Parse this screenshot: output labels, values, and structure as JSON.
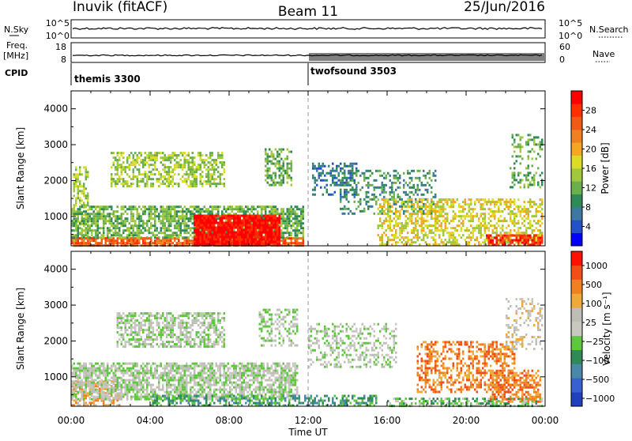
{
  "header": {
    "station": "Inuvik (fitACF)",
    "beam": "Beam 11",
    "date": "25/Jun/2016"
  },
  "top_panels": {
    "nsky_label": "N.Sky",
    "nsearch_label": "N.Search",
    "nsky_ticks": [
      "10^5",
      "10^0"
    ],
    "nsearch_ticks": [
      "10^5",
      "10^0"
    ],
    "freq_label_1": "Freq.",
    "freq_label_2": "[MHz]",
    "freq_ticks": [
      "18",
      "8"
    ],
    "nave_label": "Nave",
    "nave_ticks": [
      "60",
      "0"
    ],
    "cpid_label": "CPID",
    "cpid_segments": [
      {
        "name": "themis 3300",
        "start_hour": 0,
        "end_hour": 12
      },
      {
        "name": "twofsound 3503",
        "start_hour": 12,
        "end_hour": 24
      }
    ]
  },
  "chart_data": [
    {
      "type": "heatmap",
      "panel": "power",
      "ylabel": "Slant Range [km]",
      "ylim": [
        180,
        4500
      ],
      "xlim_hours": [
        0,
        24
      ],
      "y_ticks": [
        1000,
        2000,
        3000,
        4000
      ],
      "colorbar": {
        "label": "Power [dB]",
        "ticks": [
          "4",
          "8",
          "12",
          "16",
          "20",
          "24",
          "28"
        ],
        "colors": [
          "#0000ff",
          "#2450c8",
          "#3c78a0",
          "#2e8b57",
          "#6ab04c",
          "#a0c83c",
          "#dcdc28",
          "#f5a623",
          "#f08020",
          "#f05a14",
          "#ff3000",
          "#ff0000"
        ]
      },
      "regions": [
        {
          "h0": 0.1,
          "h1": 0.9,
          "r0": 190,
          "r1": 2400,
          "level": 5,
          "d": 0.5
        },
        {
          "h0": 0.0,
          "h1": 11.8,
          "r0": 190,
          "r1": 420,
          "level": 9,
          "d": 0.85
        },
        {
          "h0": 0.0,
          "h1": 11.8,
          "r0": 420,
          "r1": 1300,
          "level": 4,
          "d": 0.7
        },
        {
          "h0": 6.2,
          "h1": 10.6,
          "r0": 200,
          "r1": 1050,
          "level": 11,
          "d": 0.95
        },
        {
          "h0": 2.0,
          "h1": 7.8,
          "r0": 1850,
          "r1": 2800,
          "level": 5,
          "d": 0.55
        },
        {
          "h0": 9.8,
          "h1": 11.2,
          "r0": 1850,
          "r1": 2900,
          "level": 4,
          "d": 0.5
        },
        {
          "h0": 12.2,
          "h1": 14.5,
          "r0": 1600,
          "r1": 2500,
          "level": 2,
          "d": 0.45
        },
        {
          "h0": 13.6,
          "h1": 18.5,
          "r0": 1100,
          "r1": 2300,
          "level": 3,
          "d": 0.35
        },
        {
          "h0": 15.5,
          "h1": 23.9,
          "r0": 190,
          "r1": 1500,
          "level": 6,
          "d": 0.5
        },
        {
          "h0": 21.0,
          "h1": 23.9,
          "r0": 190,
          "r1": 500,
          "level": 10,
          "d": 0.7
        },
        {
          "h0": 22.2,
          "h1": 23.9,
          "r0": 1800,
          "r1": 3300,
          "level": 4,
          "d": 0.3
        }
      ]
    },
    {
      "type": "heatmap",
      "panel": "velocity",
      "ylabel": "Slant Range [km]",
      "xlabel": "Time UT",
      "ylim": [
        180,
        4500
      ],
      "xlim_hours": [
        0,
        24
      ],
      "x_ticks": [
        "00:00",
        "04:00",
        "08:00",
        "12:00",
        "16:00",
        "20:00",
        "00:00"
      ],
      "y_ticks": [
        1000,
        2000,
        3000,
        4000
      ],
      "colorbar": {
        "label": "Velocity [m s⁻¹]",
        "ticks": [
          "1000",
          "500",
          "100",
          "25",
          "−25",
          "−100",
          "−500",
          "−1000"
        ],
        "colors": [
          "#2040c0",
          "#3860d0",
          "#4a88a8",
          "#2e8b57",
          "#5ec83c",
          "#c8c8c0",
          "#bebeb6",
          "#f0a838",
          "#f08020",
          "#f05018",
          "#ff1000"
        ]
      },
      "regions": [
        {
          "h0": 0.0,
          "h1": 2.5,
          "r0": 190,
          "r1": 900,
          "level": 7,
          "d": 0.6
        },
        {
          "h0": 0.0,
          "h1": 11.5,
          "r0": 400,
          "r1": 1400,
          "level": 5,
          "d": 0.7
        },
        {
          "h0": 2.3,
          "h1": 7.8,
          "r0": 1850,
          "r1": 2800,
          "level": 5,
          "d": 0.6
        },
        {
          "h0": 9.5,
          "h1": 11.5,
          "r0": 1900,
          "r1": 2900,
          "level": 5,
          "d": 0.4
        },
        {
          "h0": 4.0,
          "h1": 15.5,
          "r0": 190,
          "r1": 500,
          "level": 3,
          "d": 0.55
        },
        {
          "h0": 12.0,
          "h1": 16.5,
          "r0": 1300,
          "r1": 2500,
          "level": 5,
          "d": 0.35
        },
        {
          "h0": 16.0,
          "h1": 23.9,
          "r0": 190,
          "r1": 420,
          "level": 4,
          "d": 0.6
        },
        {
          "h0": 17.5,
          "h1": 22.5,
          "r0": 600,
          "r1": 2000,
          "level": 8,
          "d": 0.45
        },
        {
          "h0": 21.2,
          "h1": 23.8,
          "r0": 300,
          "r1": 1200,
          "level": 8,
          "d": 0.55
        },
        {
          "h0": 22.0,
          "h1": 23.9,
          "r0": 1800,
          "r1": 3200,
          "level": 6,
          "d": 0.3
        }
      ]
    }
  ]
}
